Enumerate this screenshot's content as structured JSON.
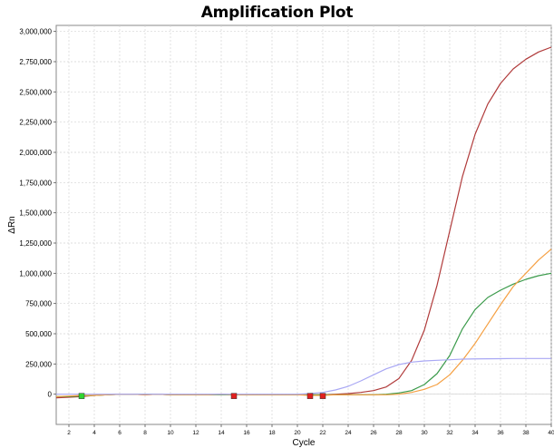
{
  "chart_data": {
    "type": "line",
    "title": "Amplification Plot",
    "xlabel": "Cycle",
    "ylabel": "ΔRn",
    "xlim": [
      1,
      40
    ],
    "ylim": [
      -250000,
      3050000
    ],
    "x_ticks": [
      2,
      4,
      6,
      8,
      10,
      12,
      14,
      16,
      18,
      20,
      22,
      24,
      26,
      28,
      30,
      32,
      34,
      36,
      38,
      40
    ],
    "y_ticks": [
      0,
      250000,
      500000,
      750000,
      1000000,
      1250000,
      1500000,
      1750000,
      2000000,
      2250000,
      2500000,
      2750000,
      3000000
    ],
    "y_tick_labels": [
      "0",
      "250,000",
      "500,000",
      "750,000",
      "1,000,000",
      "1,250,000",
      "1,500,000",
      "1,750,000",
      "2,000,000",
      "2,250,000",
      "2,500,000",
      "2,750,000",
      "3,000,000"
    ],
    "grid": true,
    "series": [
      {
        "color": "#b03a3a",
        "x": [
          1,
          2,
          3,
          4,
          5,
          6,
          7,
          8,
          9,
          10,
          11,
          12,
          13,
          14,
          15,
          16,
          17,
          18,
          19,
          20,
          21,
          22,
          23,
          24,
          25,
          26,
          27,
          28,
          29,
          30,
          31,
          32,
          33,
          34,
          35,
          36,
          37,
          38,
          39,
          40
        ],
        "y": [
          -30000,
          -25000,
          -20000,
          -10000,
          -5000,
          0,
          0,
          -5000,
          0,
          -5000,
          -5000,
          -5000,
          -5000,
          0,
          -5000,
          -5000,
          -5000,
          -5000,
          -5000,
          -5000,
          -5000,
          -5000,
          0,
          5000,
          15000,
          30000,
          60000,
          130000,
          280000,
          530000,
          900000,
          1350000,
          1800000,
          2150000,
          2400000,
          2570000,
          2690000,
          2770000,
          2830000,
          2870000
        ]
      },
      {
        "color": "#3a9a4a",
        "x": [
          1,
          2,
          3,
          4,
          5,
          6,
          7,
          8,
          9,
          10,
          11,
          12,
          13,
          14,
          15,
          16,
          17,
          18,
          19,
          20,
          21,
          22,
          23,
          24,
          25,
          26,
          27,
          28,
          29,
          30,
          31,
          32,
          33,
          34,
          35,
          36,
          37,
          38,
          39,
          40
        ],
        "y": [
          -20000,
          -20000,
          -15000,
          -10000,
          -5000,
          0,
          0,
          0,
          0,
          -5000,
          -5000,
          -5000,
          -5000,
          -5000,
          -5000,
          -5000,
          -5000,
          -5000,
          -5000,
          -5000,
          -5000,
          -5000,
          -5000,
          -5000,
          -5000,
          -5000,
          0,
          10000,
          30000,
          80000,
          170000,
          320000,
          540000,
          700000,
          800000,
          860000,
          910000,
          950000,
          980000,
          1000000
        ]
      },
      {
        "color": "#f5a043",
        "x": [
          1,
          2,
          3,
          4,
          5,
          6,
          7,
          8,
          9,
          10,
          11,
          12,
          13,
          14,
          15,
          16,
          17,
          18,
          19,
          20,
          21,
          22,
          23,
          24,
          25,
          26,
          27,
          28,
          29,
          30,
          31,
          32,
          33,
          34,
          35,
          36,
          37,
          38,
          39,
          40
        ],
        "y": [
          -20000,
          -15000,
          -10000,
          -10000,
          -5000,
          0,
          0,
          -5000,
          0,
          -5000,
          -5000,
          -5000,
          -5000,
          0,
          -5000,
          -5000,
          -5000,
          -5000,
          -5000,
          -5000,
          -10000,
          -10000,
          -5000,
          -5000,
          -5000,
          -5000,
          -5000,
          0,
          15000,
          40000,
          80000,
          160000,
          280000,
          420000,
          580000,
          740000,
          890000,
          1000000,
          1110000,
          1200000
        ]
      },
      {
        "color": "#a9a8f4",
        "x": [
          1,
          2,
          3,
          4,
          5,
          6,
          7,
          8,
          9,
          10,
          11,
          12,
          13,
          14,
          15,
          16,
          17,
          18,
          19,
          20,
          21,
          22,
          23,
          24,
          25,
          26,
          27,
          28,
          29,
          30,
          31,
          32,
          33,
          34,
          35,
          36,
          37,
          38,
          39,
          40
        ],
        "y": [
          0,
          0,
          0,
          0,
          0,
          0,
          0,
          0,
          0,
          0,
          0,
          0,
          0,
          0,
          0,
          0,
          0,
          0,
          0,
          0,
          5000,
          15000,
          35000,
          65000,
          110000,
          160000,
          210000,
          245000,
          265000,
          275000,
          280000,
          285000,
          290000,
          292000,
          293000,
          294000,
          295000,
          295000,
          295000,
          295000
        ]
      }
    ],
    "markers": [
      {
        "x": 3,
        "y": -15000,
        "color": "#2fd52f"
      },
      {
        "x": 15,
        "y": -15000,
        "color": "#e02020"
      },
      {
        "x": 21,
        "y": -15000,
        "color": "#e02020"
      },
      {
        "x": 22,
        "y": -15000,
        "color": "#e02020"
      }
    ]
  }
}
